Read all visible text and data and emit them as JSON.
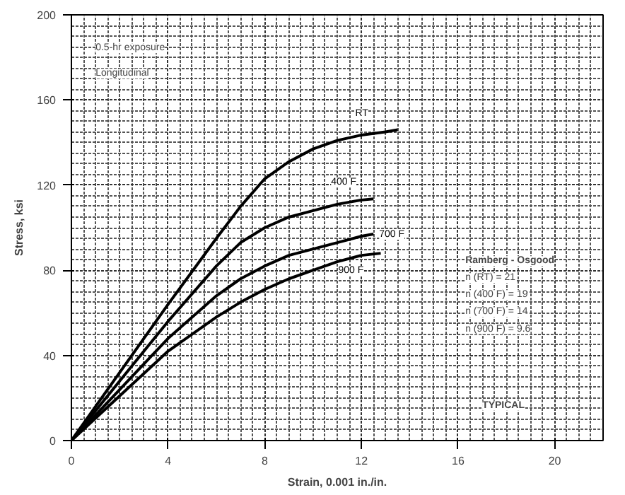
{
  "chart_data": {
    "type": "line",
    "xlabel": "Strain, 0.001 in./in.",
    "ylabel": "Stress, ksi",
    "xlim": [
      0,
      22
    ],
    "ylim": [
      0,
      200
    ],
    "xticks": [
      0,
      4,
      8,
      12,
      16,
      20
    ],
    "yticks": [
      0,
      40,
      80,
      120,
      160,
      200
    ],
    "grid": true,
    "marker": "none",
    "line_style": "solid",
    "series": [
      {
        "name": "RT",
        "color": "#000000",
        "x": [
          0,
          2,
          4,
          6,
          7,
          8,
          9,
          10,
          11,
          12,
          13,
          13.5
        ],
        "values": [
          0,
          32,
          64,
          95,
          110,
          123,
          131,
          137,
          141,
          143.5,
          145,
          146
        ]
      },
      {
        "name": "400 F",
        "color": "#000000",
        "x": [
          0,
          2,
          4,
          6,
          7,
          8,
          9,
          10,
          11,
          12,
          12.5
        ],
        "values": [
          0,
          28,
          56,
          82,
          93,
          100,
          105,
          108,
          111,
          113,
          113.5
        ]
      },
      {
        "name": "700 F",
        "color": "#000000",
        "x": [
          0,
          2,
          4,
          6,
          7,
          8,
          9,
          10,
          11,
          12,
          12.5
        ],
        "values": [
          0,
          24,
          48,
          68,
          76,
          82,
          87,
          90,
          93,
          96,
          97
        ]
      },
      {
        "name": "900 F",
        "color": "#000000",
        "x": [
          0,
          2,
          4,
          6,
          7,
          8,
          9,
          10,
          11,
          12,
          12.8
        ],
        "values": [
          0,
          21,
          42,
          58,
          65,
          71,
          76,
          80,
          84,
          87,
          88
        ]
      }
    ],
    "annotations": [
      "0.5-hr exposure",
      "Longitudinal",
      "Ramberg - Osgood",
      "n (RT) = 21",
      "n (400 F) = 19",
      "n (700 F) = 14",
      "n (900 F) = 9.6",
      "TYPICAL"
    ]
  }
}
